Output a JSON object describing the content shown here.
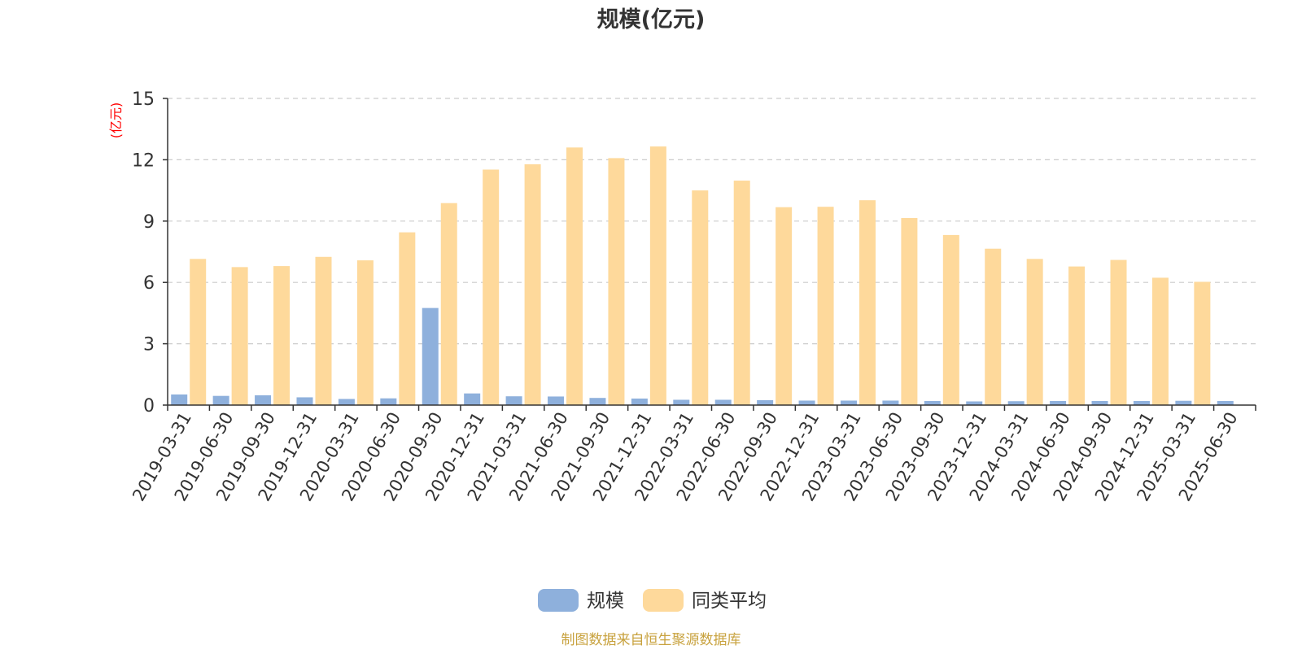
{
  "colors": {
    "series_scale": "#8eb0dc",
    "series_avg": "#fed99b",
    "grid": "#cccccc",
    "axis": "#333333",
    "tick_text": "#333333",
    "title": "#333333",
    "unit_label": "#ff0000",
    "footer": "#c8a23e"
  },
  "chart_data": {
    "type": "bar",
    "title": "规模(亿元)",
    "ylabel": "(亿元)",
    "ylim": [
      0,
      15
    ],
    "yticks": [
      "0",
      "3",
      "6",
      "9",
      "12",
      "15"
    ],
    "grid": true,
    "legend_position": "bottom-center",
    "categories": [
      "2019-03-31",
      "2019-06-30",
      "2019-09-30",
      "2019-12-31",
      "2020-03-31",
      "2020-06-30",
      "2020-09-30",
      "2020-12-31",
      "2021-03-31",
      "2021-06-30",
      "2021-09-30",
      "2021-12-31",
      "2022-03-31",
      "2022-06-30",
      "2022-09-30",
      "2022-12-31",
      "2023-03-31",
      "2023-06-30",
      "2023-09-30",
      "2023-12-31",
      "2024-03-31",
      "2024-06-30",
      "2024-09-30",
      "2024-12-31",
      "2025-03-31",
      "2025-06-30"
    ],
    "series": [
      {
        "name": "规模",
        "values": [
          0.52,
          0.45,
          0.48,
          0.38,
          0.3,
          0.33,
          4.75,
          0.57,
          0.43,
          0.42,
          0.35,
          0.32,
          0.26,
          0.26,
          0.24,
          0.22,
          0.22,
          0.22,
          0.2,
          0.18,
          0.19,
          0.2,
          0.2,
          0.2,
          0.21,
          0.2
        ]
      },
      {
        "name": "同类平均",
        "values": [
          7.15,
          6.75,
          6.8,
          7.25,
          7.08,
          8.45,
          9.88,
          11.52,
          11.78,
          12.6,
          12.08,
          12.65,
          10.5,
          10.98,
          9.68,
          9.7,
          10.02,
          9.15,
          8.32,
          7.65,
          7.15,
          6.78,
          7.1,
          6.23,
          6.03,
          null
        ]
      }
    ],
    "footer": "制图数据来自恒生聚源数据库"
  }
}
